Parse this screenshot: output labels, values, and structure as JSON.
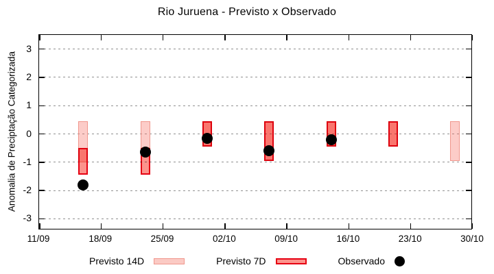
{
  "chart_data": {
    "type": "bar",
    "title": "Rio Juruena - Previsto x Observado",
    "ylabel": "Anomalia de Preciptação Categorizada",
    "xlabel": "",
    "ylim": [
      -3.4,
      3.5
    ],
    "yticks": [
      -3,
      -2,
      -1,
      0,
      1,
      2,
      3
    ],
    "xtick_labels": [
      "11/09",
      "18/09",
      "25/09",
      "02/10",
      "09/10",
      "16/10",
      "23/10",
      "30/10"
    ],
    "x_span_days": 49,
    "grid": "horizontal dotted gray",
    "legend_position": "bottom",
    "colors": {
      "previsto_14d_fill": "#fbcac4",
      "previsto_14d_border": "#f0968c",
      "previsto_7d_fill": "#fc938c",
      "previsto_7d_border": "#e60012",
      "overlap_fill": "#f5605a",
      "observado": "#000000"
    },
    "series": [
      {
        "name": "Previsto 14D",
        "type": "range-bar",
        "points": [
          {
            "date": "16/09",
            "day": 5,
            "low": -1.0,
            "high": 0.45
          },
          {
            "date": "23/09",
            "day": 12,
            "low": -0.5,
            "high": 0.45
          },
          {
            "date": "30/09",
            "day": 19,
            "low": -0.45,
            "high": 0.45
          },
          {
            "date": "07/10",
            "day": 26,
            "low": -0.95,
            "high": 0.45
          },
          {
            "date": "14/10",
            "day": 33,
            "low": -0.45,
            "high": 0.45
          },
          {
            "date": "21/10",
            "day": 40,
            "low": -0.45,
            "high": 0.45
          },
          {
            "date": "28/10",
            "day": 47,
            "low": -0.95,
            "high": 0.45
          }
        ]
      },
      {
        "name": "Previsto 7D",
        "type": "range-bar",
        "points": [
          {
            "date": "16/09",
            "day": 5,
            "low": -1.45,
            "high": -0.5
          },
          {
            "date": "23/09",
            "day": 12,
            "low": -1.45,
            "high": -0.5
          },
          {
            "date": "30/09",
            "day": 19,
            "low": -0.45,
            "high": 0.45
          },
          {
            "date": "07/10",
            "day": 26,
            "low": -0.95,
            "high": 0.45
          },
          {
            "date": "14/10",
            "day": 33,
            "low": -0.45,
            "high": 0.45
          },
          {
            "date": "21/10",
            "day": 40,
            "low": -0.45,
            "high": 0.45
          }
        ]
      },
      {
        "name": "Observado",
        "type": "scatter",
        "points": [
          {
            "date": "16/09",
            "day": 5,
            "value": -1.8
          },
          {
            "date": "23/09",
            "day": 12,
            "value": -0.65
          },
          {
            "date": "30/09",
            "day": 19,
            "value": -0.15
          },
          {
            "date": "07/10",
            "day": 26,
            "value": -0.6
          },
          {
            "date": "14/10",
            "day": 33,
            "value": -0.2
          }
        ]
      }
    ]
  }
}
